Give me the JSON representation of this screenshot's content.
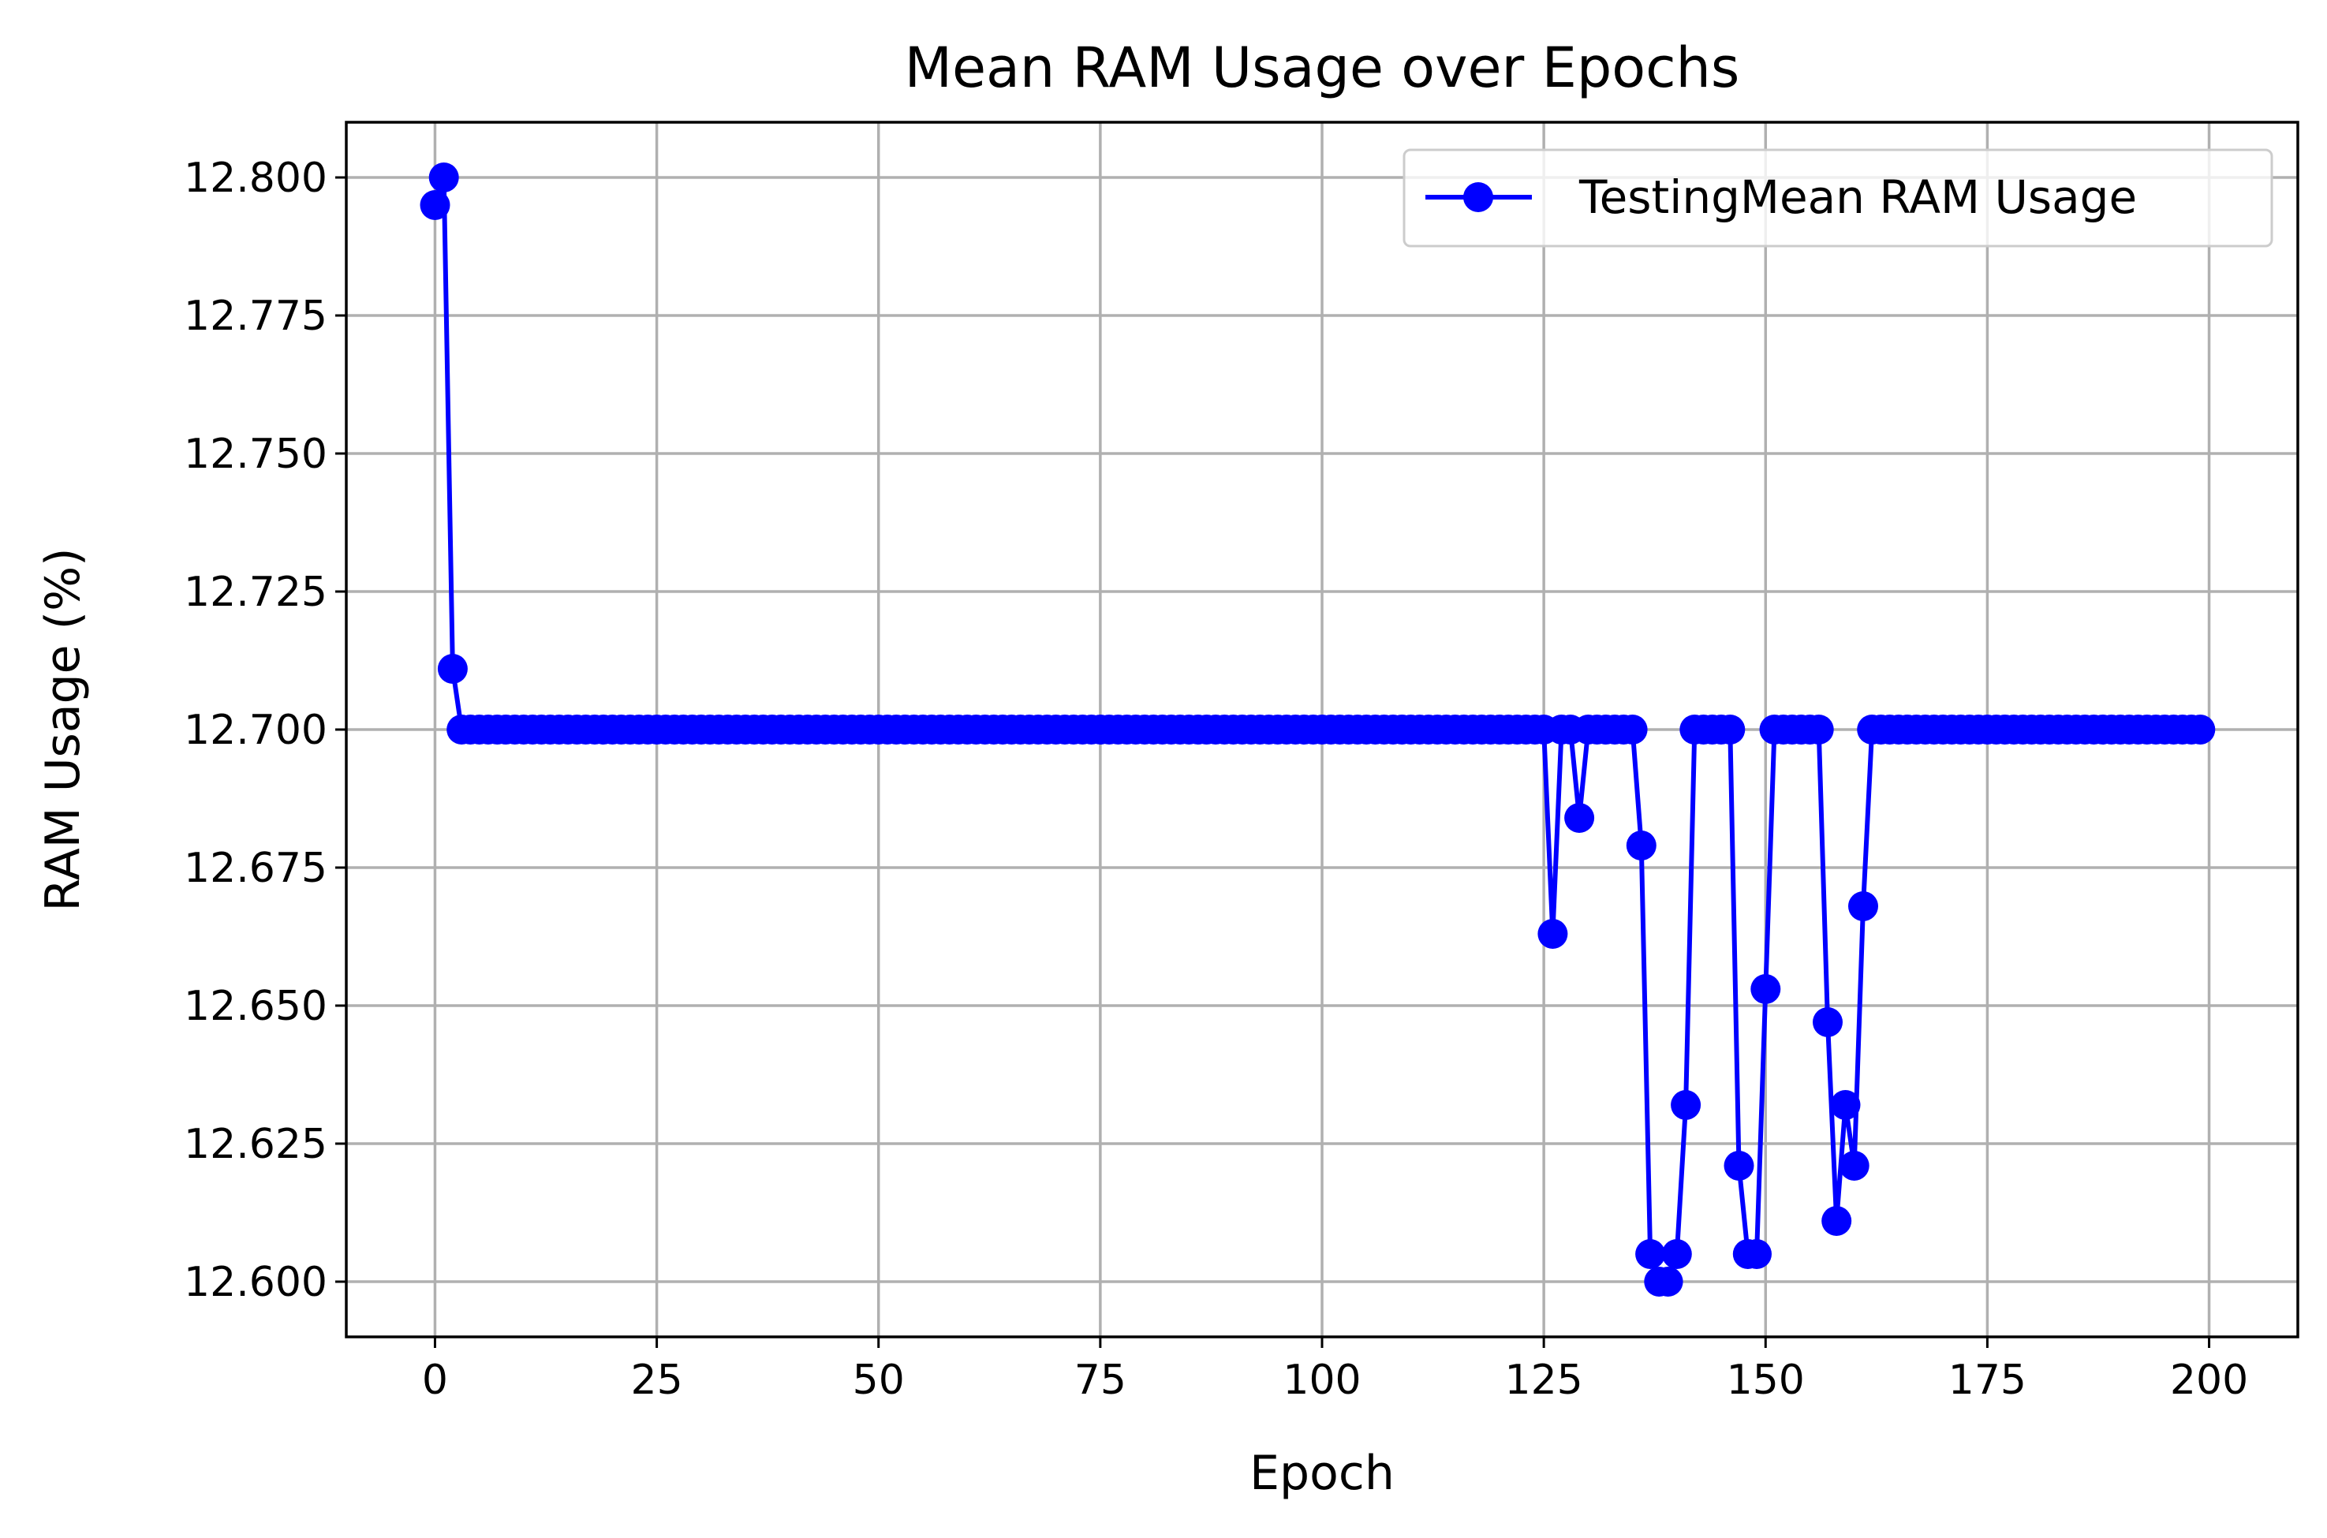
{
  "chart_data": {
    "type": "line",
    "title": "Mean RAM Usage over Epochs",
    "xlabel": "Epoch",
    "ylabel": "RAM Usage (%)",
    "xlim": [
      -10,
      210
    ],
    "ylim": [
      12.59,
      12.81
    ],
    "xticks": [
      0,
      25,
      50,
      75,
      100,
      125,
      150,
      175,
      200
    ],
    "xtick_labels": [
      "0",
      "25",
      "50",
      "75",
      "100",
      "125",
      "150",
      "175",
      "200"
    ],
    "yticks": [
      12.6,
      12.625,
      12.65,
      12.675,
      12.7,
      12.725,
      12.75,
      12.775,
      12.8
    ],
    "ytick_labels": [
      "12.600",
      "12.625",
      "12.650",
      "12.675",
      "12.700",
      "12.725",
      "12.750",
      "12.775",
      "12.800"
    ],
    "grid": true,
    "legend_position": "top-right",
    "series": [
      {
        "name": "TestingMean RAM Usage",
        "color": "#0000ff",
        "marker": "circle",
        "x_start": 0,
        "x_step": 1,
        "values": [
          12.795,
          12.8,
          12.711,
          12.7,
          12.7,
          12.7,
          12.7,
          12.7,
          12.7,
          12.7,
          12.7,
          12.7,
          12.7,
          12.7,
          12.7,
          12.7,
          12.7,
          12.7,
          12.7,
          12.7,
          12.7,
          12.7,
          12.7,
          12.7,
          12.7,
          12.7,
          12.7,
          12.7,
          12.7,
          12.7,
          12.7,
          12.7,
          12.7,
          12.7,
          12.7,
          12.7,
          12.7,
          12.7,
          12.7,
          12.7,
          12.7,
          12.7,
          12.7,
          12.7,
          12.7,
          12.7,
          12.7,
          12.7,
          12.7,
          12.7,
          12.7,
          12.7,
          12.7,
          12.7,
          12.7,
          12.7,
          12.7,
          12.7,
          12.7,
          12.7,
          12.7,
          12.7,
          12.7,
          12.7,
          12.7,
          12.7,
          12.7,
          12.7,
          12.7,
          12.7,
          12.7,
          12.7,
          12.7,
          12.7,
          12.7,
          12.7,
          12.7,
          12.7,
          12.7,
          12.7,
          12.7,
          12.7,
          12.7,
          12.7,
          12.7,
          12.7,
          12.7,
          12.7,
          12.7,
          12.7,
          12.7,
          12.7,
          12.7,
          12.7,
          12.7,
          12.7,
          12.7,
          12.7,
          12.7,
          12.7,
          12.7,
          12.7,
          12.7,
          12.7,
          12.7,
          12.7,
          12.7,
          12.7,
          12.7,
          12.7,
          12.7,
          12.7,
          12.7,
          12.7,
          12.7,
          12.7,
          12.7,
          12.7,
          12.7,
          12.7,
          12.7,
          12.7,
          12.7,
          12.7,
          12.7,
          12.7,
          12.663,
          12.7,
          12.7,
          12.684,
          12.7,
          12.7,
          12.7,
          12.7,
          12.7,
          12.7,
          12.679,
          12.605,
          12.6,
          12.6,
          12.605,
          12.632,
          12.7,
          12.7,
          12.7,
          12.7,
          12.7,
          12.621,
          12.605,
          12.605,
          12.653,
          12.7,
          12.7,
          12.7,
          12.7,
          12.7,
          12.7,
          12.647,
          12.611,
          12.632,
          12.621,
          12.668,
          12.7,
          12.7,
          12.7,
          12.7,
          12.7,
          12.7,
          12.7,
          12.7,
          12.7,
          12.7,
          12.7,
          12.7,
          12.7,
          12.7,
          12.7,
          12.7,
          12.7,
          12.7,
          12.7,
          12.7,
          12.7,
          12.7,
          12.7,
          12.7,
          12.7,
          12.7,
          12.7,
          12.7,
          12.7,
          12.7,
          12.7,
          12.7,
          12.7,
          12.7,
          12.7,
          12.7,
          12.7,
          12.7
        ]
      }
    ]
  }
}
